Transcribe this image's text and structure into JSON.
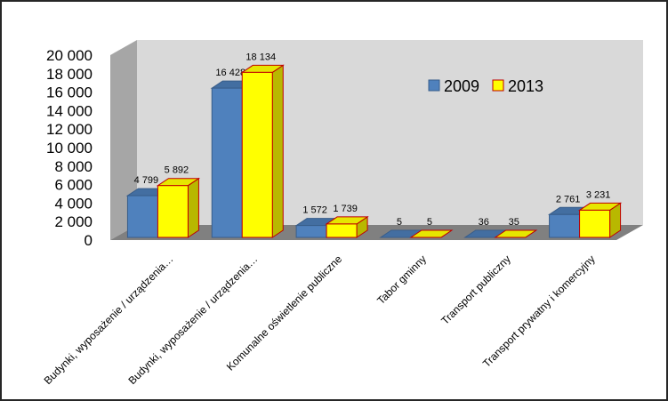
{
  "chart_data": {
    "type": "bar",
    "categories": [
      "Budynki, wyposażenie / urządzenia…",
      "Budynki, wyposażenie / urządzenia…",
      "Komunalne oświetlenie publiczne",
      "Tabor gminny",
      "Transport publiczny",
      "Transport prywatny i komercyjny"
    ],
    "series": [
      {
        "name": "2009",
        "values": [
          4799,
          16428,
          1572,
          5,
          36,
          2761
        ],
        "labels": [
          "4 799",
          "16 428",
          "1 572",
          "5",
          "36",
          "2 761"
        ],
        "color": "#4F81BD"
      },
      {
        "name": "2013",
        "values": [
          5892,
          18134,
          1739,
          5,
          35,
          3231
        ],
        "labels": [
          "5 892",
          "18 134",
          "1 739",
          "5",
          "35",
          "3 231"
        ],
        "color": "#FFFF00"
      }
    ],
    "ylim": [
      0,
      20000
    ],
    "yticks": [
      0,
      2000,
      4000,
      6000,
      8000,
      10000,
      12000,
      14000,
      16000,
      18000,
      20000
    ],
    "ytick_labels": [
      "0",
      "2 000",
      "4 000",
      "6 000",
      "8 000",
      "10 000",
      "12 000",
      "14 000",
      "16 000",
      "18 000",
      "20 000"
    ],
    "legend": {
      "position": "top-right"
    },
    "grid": false,
    "style": "3d",
    "colors": {
      "wall": "#D9D9D9",
      "wall_side": "#A6A6A6",
      "floor": "#808080",
      "edge_2009": "#385D8A",
      "edge_2013": "#C00000"
    }
  }
}
